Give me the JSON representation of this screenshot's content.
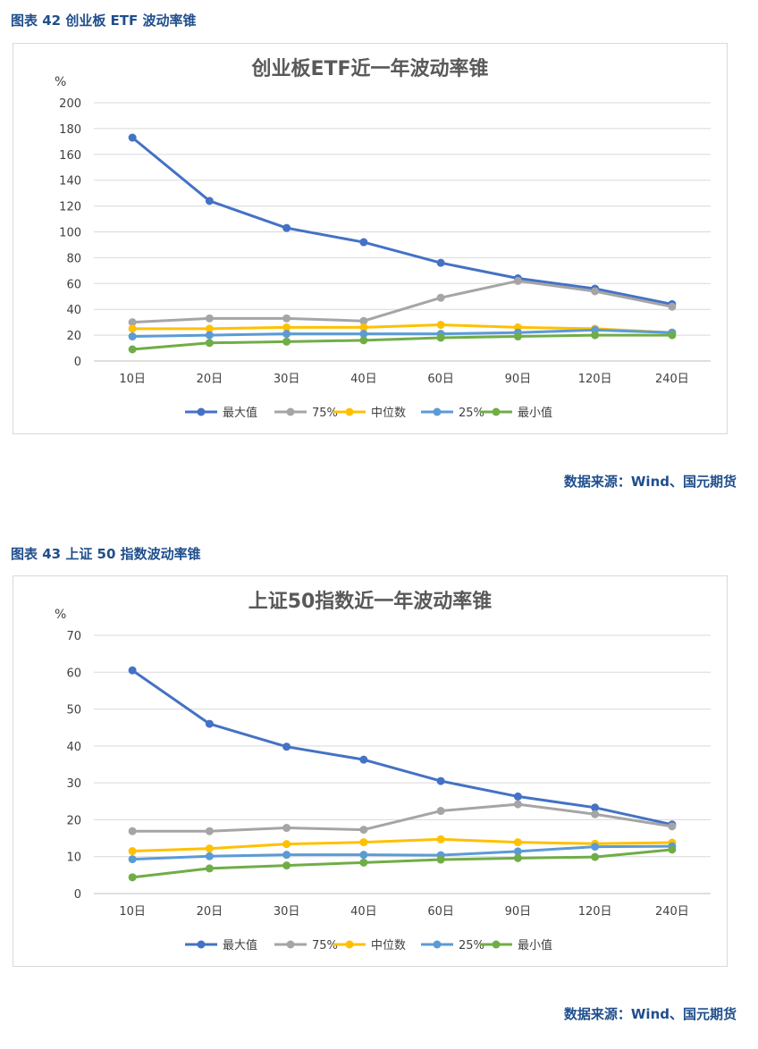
{
  "figures": [
    {
      "caption": "图表 42  创业板 ETF 波动率锥",
      "source": "数据来源：Wind、国元期货",
      "chart_data": {
        "type": "line",
        "title": "创业板ETF近一年波动率锥",
        "yunit": "%",
        "categories": [
          "10日",
          "20日",
          "30日",
          "40日",
          "60日",
          "90日",
          "120日",
          "240日"
        ],
        "ylim": [
          0,
          200
        ],
        "yticks": [
          0,
          20,
          40,
          60,
          80,
          100,
          120,
          140,
          160,
          180,
          200
        ],
        "grid": true,
        "legend_position": "bottom",
        "series": [
          {
            "name": "最大值",
            "color": "#4472c4",
            "values": [
              173,
              124,
              103,
              92,
              76,
              64,
              56,
              44
            ]
          },
          {
            "name": "75%",
            "color": "#a5a5a5",
            "values": [
              30,
              33,
              33,
              31,
              49,
              62,
              54,
              42
            ]
          },
          {
            "name": "中位数",
            "color": "#ffc000",
            "values": [
              25,
              25,
              26,
              26,
              28,
              26,
              25,
              22
            ]
          },
          {
            "name": "25%",
            "color": "#5b9bd5",
            "values": [
              19,
              20,
              21,
              21,
              21,
              22,
              24,
              22
            ]
          },
          {
            "name": "最小值",
            "color": "#70ad47",
            "values": [
              9,
              14,
              15,
              16,
              18,
              19,
              20,
              20
            ]
          }
        ]
      }
    },
    {
      "caption": "图表 43  上证 50 指数波动率锥",
      "source": "数据来源：Wind、国元期货",
      "chart_data": {
        "type": "line",
        "title": "上证50指数近一年波动率锥",
        "yunit": "%",
        "categories": [
          "10日",
          "20日",
          "30日",
          "40日",
          "60日",
          "90日",
          "120日",
          "240日"
        ],
        "ylim": [
          0,
          70
        ],
        "yticks": [
          0,
          10,
          20,
          30,
          40,
          50,
          60,
          70
        ],
        "grid": true,
        "legend_position": "bottom",
        "series": [
          {
            "name": "最大值",
            "color": "#4472c4",
            "values": [
              60.5,
              46,
              39.8,
              36.3,
              30.5,
              26.3,
              23.3,
              18.7
            ]
          },
          {
            "name": "75%",
            "color": "#a5a5a5",
            "values": [
              16.9,
              16.9,
              17.8,
              17.3,
              22.4,
              24.2,
              21.5,
              18.2
            ]
          },
          {
            "name": "中位数",
            "color": "#ffc000",
            "values": [
              11.5,
              12.2,
              13.4,
              13.9,
              14.7,
              13.9,
              13.5,
              13.8
            ]
          },
          {
            "name": "25%",
            "color": "#5b9bd5",
            "values": [
              9.3,
              10.1,
              10.5,
              10.5,
              10.4,
              11.4,
              12.7,
              12.8
            ]
          },
          {
            "name": "最小值",
            "color": "#70ad47",
            "values": [
              4.4,
              6.8,
              7.6,
              8.4,
              9.2,
              9.6,
              9.9,
              11.9
            ]
          }
        ]
      }
    }
  ]
}
